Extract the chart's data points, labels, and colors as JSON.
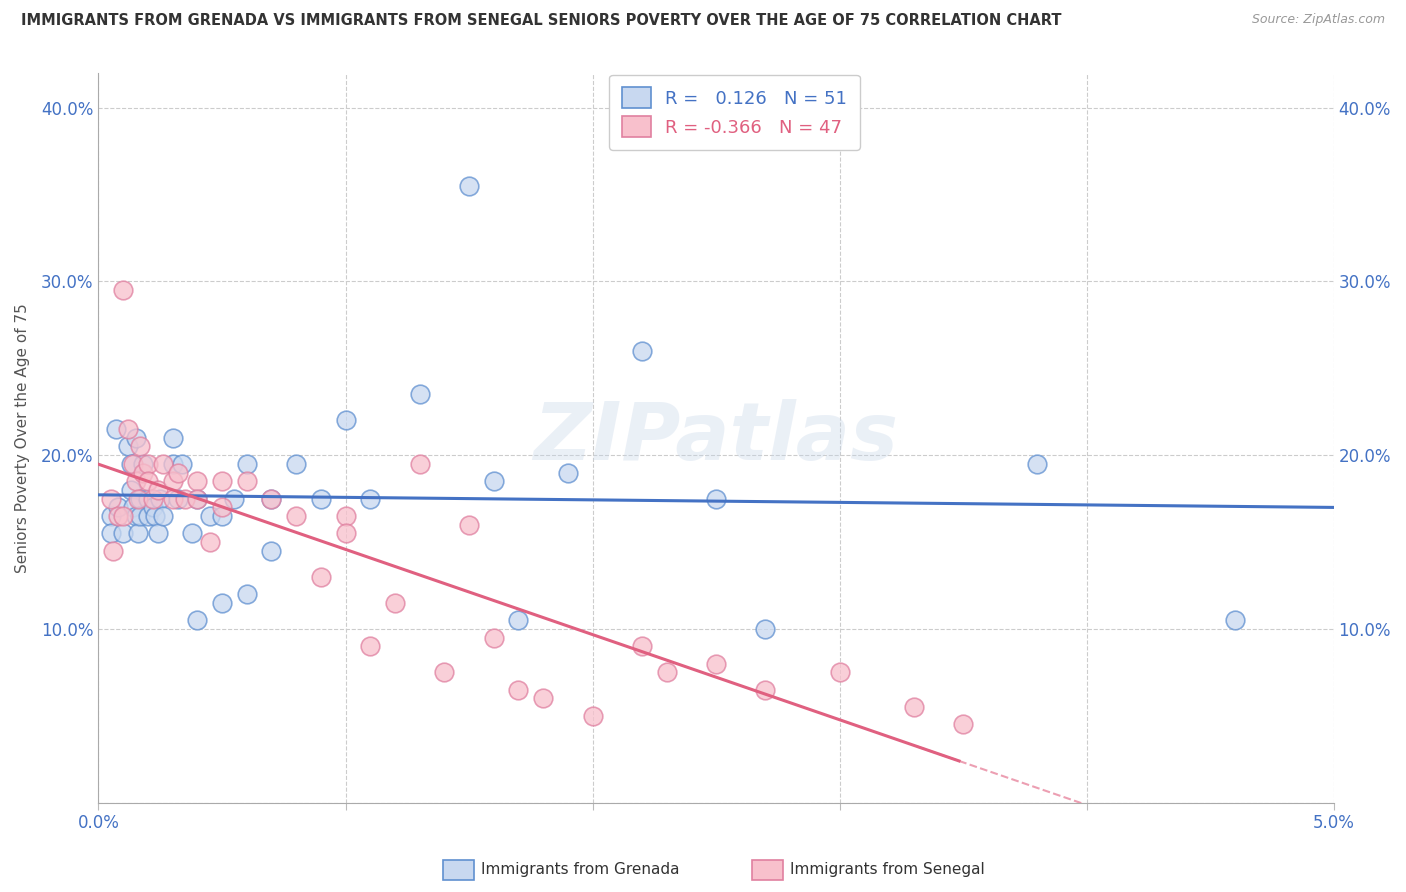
{
  "title": "IMMIGRANTS FROM GRENADA VS IMMIGRANTS FROM SENEGAL SENIORS POVERTY OVER THE AGE OF 75 CORRELATION CHART",
  "source": "Source: ZipAtlas.com",
  "ylabel": "Seniors Poverty Over the Age of 75",
  "xlim": [
    0.0,
    0.05
  ],
  "ylim": [
    0.0,
    0.42
  ],
  "yticks": [
    0.0,
    0.1,
    0.2,
    0.3,
    0.4
  ],
  "ytick_labels": [
    "",
    "10.0%",
    "20.0%",
    "30.0%",
    "40.0%"
  ],
  "xticks": [
    0.0,
    0.01,
    0.02,
    0.03,
    0.04,
    0.05
  ],
  "xtick_labels": [
    "0.0%",
    "",
    "",
    "",
    "",
    "5.0%"
  ],
  "grenada_R": 0.126,
  "grenada_N": 51,
  "senegal_R": -0.366,
  "senegal_N": 47,
  "grenada_fill_color": "#c8d8f0",
  "senegal_fill_color": "#f8c0cc",
  "grenada_edge_color": "#6090d0",
  "senegal_edge_color": "#e080a0",
  "grenada_line_color": "#4472c4",
  "senegal_line_color": "#e06080",
  "background_color": "#ffffff",
  "watermark": "ZIPatlas",
  "grenada_legend_label": "Immigrants from Grenada",
  "senegal_legend_label": "Immigrants from Senegal",
  "grenada_x": [
    0.0005,
    0.0005,
    0.0007,
    0.0008,
    0.001,
    0.0012,
    0.0013,
    0.0013,
    0.0014,
    0.0015,
    0.0015,
    0.0016,
    0.0017,
    0.0017,
    0.0018,
    0.002,
    0.002,
    0.0022,
    0.0023,
    0.0024,
    0.0025,
    0.0026,
    0.003,
    0.003,
    0.0032,
    0.0034,
    0.0038,
    0.004,
    0.004,
    0.0045,
    0.005,
    0.005,
    0.0055,
    0.006,
    0.006,
    0.007,
    0.007,
    0.008,
    0.009,
    0.01,
    0.011,
    0.013,
    0.015,
    0.016,
    0.017,
    0.019,
    0.022,
    0.025,
    0.027,
    0.038,
    0.046
  ],
  "grenada_y": [
    0.165,
    0.155,
    0.215,
    0.17,
    0.155,
    0.205,
    0.195,
    0.18,
    0.17,
    0.21,
    0.165,
    0.155,
    0.175,
    0.165,
    0.195,
    0.175,
    0.165,
    0.17,
    0.165,
    0.155,
    0.175,
    0.165,
    0.21,
    0.195,
    0.175,
    0.195,
    0.155,
    0.175,
    0.105,
    0.165,
    0.165,
    0.115,
    0.175,
    0.195,
    0.12,
    0.175,
    0.145,
    0.195,
    0.175,
    0.22,
    0.175,
    0.235,
    0.355,
    0.185,
    0.105,
    0.19,
    0.26,
    0.175,
    0.1,
    0.195,
    0.105
  ],
  "senegal_x": [
    0.0005,
    0.0006,
    0.0008,
    0.001,
    0.001,
    0.0012,
    0.0014,
    0.0015,
    0.0016,
    0.0017,
    0.0018,
    0.002,
    0.002,
    0.0022,
    0.0024,
    0.0026,
    0.003,
    0.003,
    0.0032,
    0.0035,
    0.004,
    0.004,
    0.0045,
    0.005,
    0.005,
    0.006,
    0.007,
    0.008,
    0.009,
    0.01,
    0.01,
    0.011,
    0.012,
    0.013,
    0.014,
    0.015,
    0.016,
    0.017,
    0.018,
    0.02,
    0.022,
    0.023,
    0.025,
    0.027,
    0.03,
    0.033,
    0.035
  ],
  "senegal_y": [
    0.175,
    0.145,
    0.165,
    0.295,
    0.165,
    0.215,
    0.195,
    0.185,
    0.175,
    0.205,
    0.19,
    0.195,
    0.185,
    0.175,
    0.18,
    0.195,
    0.185,
    0.175,
    0.19,
    0.175,
    0.185,
    0.175,
    0.15,
    0.185,
    0.17,
    0.185,
    0.175,
    0.165,
    0.13,
    0.165,
    0.155,
    0.09,
    0.115,
    0.195,
    0.075,
    0.16,
    0.095,
    0.065,
    0.06,
    0.05,
    0.09,
    0.075,
    0.08,
    0.065,
    0.075,
    0.055,
    0.045
  ]
}
